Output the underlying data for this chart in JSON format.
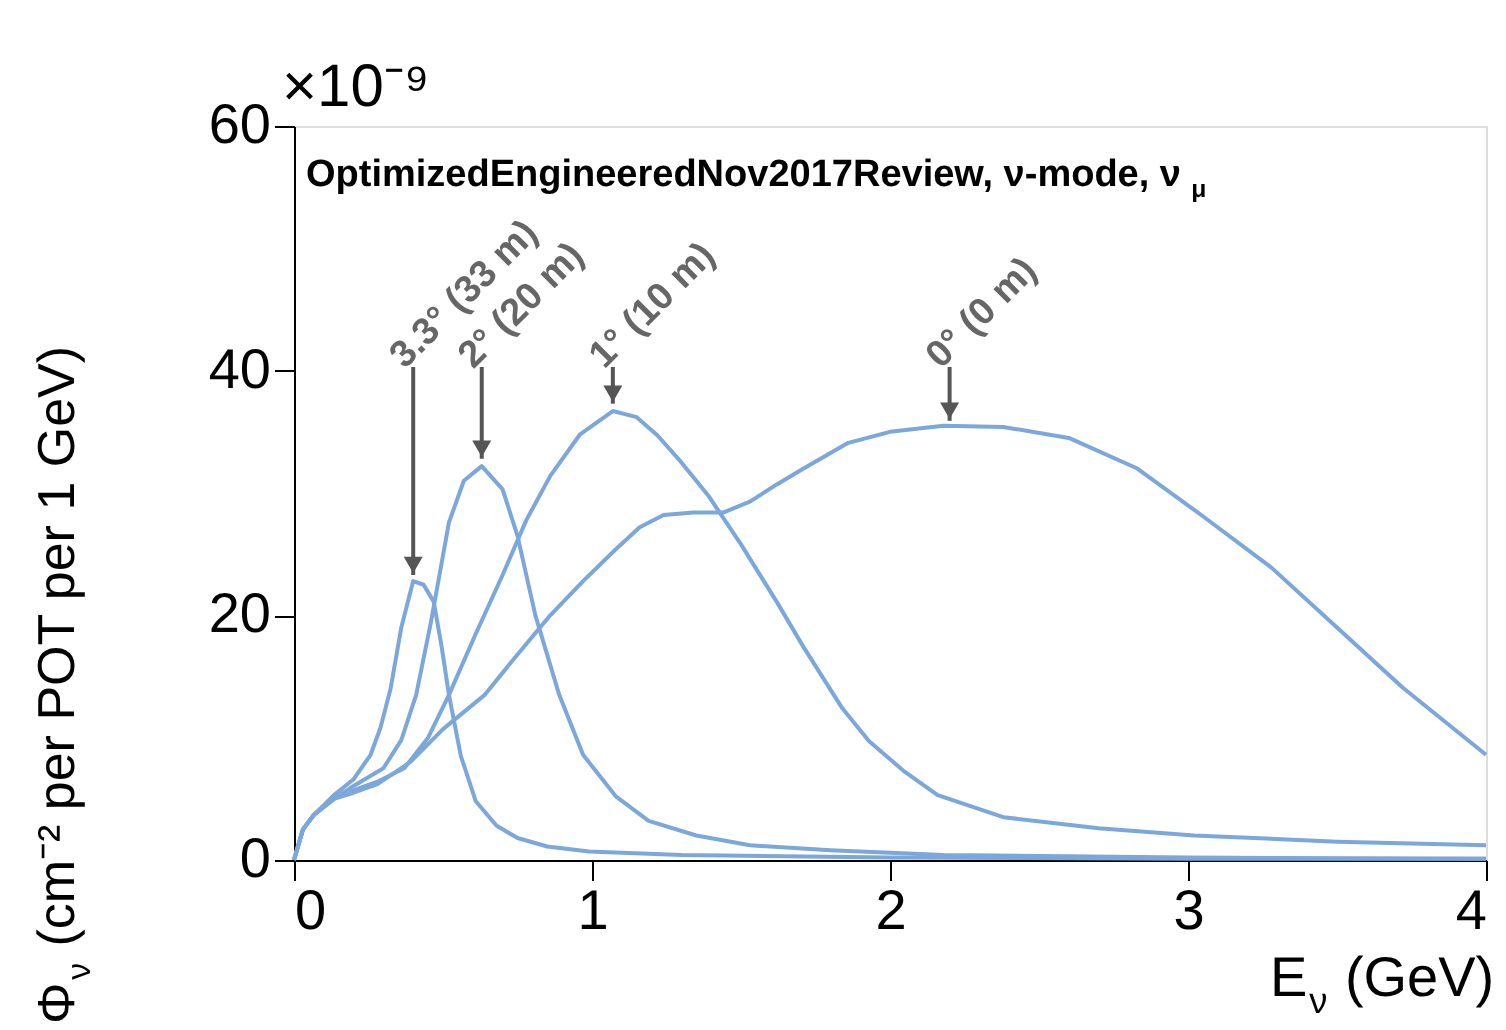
{
  "chart_data": {
    "type": "line",
    "title": "OptimizedEngineeredNov2017Review, ν-mode, ν$_{μ}$",
    "xlabel": "E$_{ν}$ (GeV)",
    "ylabel": "Φ$_{ν}$ (cm⁻² per POT per 1 GeV)",
    "xlim": [
      0,
      4
    ],
    "ylim": [
      0,
      60
    ],
    "xticks": [
      0,
      1,
      2,
      3,
      4
    ],
    "yticks": [
      0,
      20,
      40,
      60
    ],
    "grid": false,
    "marker": "none",
    "line_style": "solid",
    "series": [
      {
        "color": "#7ba7db",
        "x": [
          0,
          0.03,
          0.067,
          0.134,
          0.2,
          0.257,
          0.29,
          0.324,
          0.36,
          0.4,
          0.435,
          0.469,
          0.495,
          0.52,
          0.56,
          0.61,
          0.68,
          0.75,
          0.85,
          0.99,
          1.3,
          2.0,
          3.0,
          4.0
        ],
        "values": [
          0,
          2.5,
          3.7,
          5.3,
          6.6,
          8.6,
          10.8,
          14,
          19,
          22.8,
          22.5,
          21.1,
          17.5,
          13.5,
          8.5,
          4.8,
          2.8,
          1.8,
          1.1,
          0.7,
          0.4,
          0.2,
          0.1,
          0.1
        ]
      },
      {
        "color": "#7ba7db",
        "x": [
          0,
          0.03,
          0.067,
          0.134,
          0.19,
          0.3,
          0.36,
          0.41,
          0.46,
          0.52,
          0.57,
          0.63,
          0.7,
          0.75,
          0.81,
          0.89,
          0.97,
          1.08,
          1.19,
          1.35,
          1.53,
          1.8,
          2.18,
          3.0,
          4.0
        ],
        "values": [
          0,
          2.5,
          3.7,
          5.0,
          5.9,
          7.5,
          9.8,
          13.5,
          19.5,
          27.6,
          31,
          32.2,
          30.3,
          26.5,
          20,
          13.5,
          8.6,
          5.2,
          3.2,
          2.0,
          1.2,
          0.8,
          0.4,
          0.2,
          0.1
        ]
      },
      {
        "color": "#7ba7db",
        "x": [
          0,
          0.03,
          0.067,
          0.134,
          0.19,
          0.28,
          0.37,
          0.45,
          0.52,
          0.61,
          0.7,
          0.78,
          0.86,
          0.96,
          1.07,
          1.15,
          1.22,
          1.3,
          1.39,
          1.5,
          1.62,
          1.71,
          1.84,
          1.93,
          2.05,
          2.16,
          2.38,
          2.7,
          3.02,
          3.5,
          4.0
        ],
        "values": [
          0,
          2.5,
          3.7,
          5.0,
          5.6,
          6.4,
          7.5,
          10,
          13.5,
          18.5,
          23.3,
          27.8,
          31.4,
          34.8,
          36.7,
          36.2,
          34.7,
          32.5,
          29.8,
          25.8,
          21.1,
          17.4,
          12.4,
          9.7,
          7.2,
          5.3,
          3.5,
          2.6,
          2.0,
          1.5,
          1.2
        ]
      },
      {
        "color": "#7ba7db",
        "x": [
          0,
          0.03,
          0.067,
          0.134,
          0.2,
          0.28,
          0.39,
          0.5,
          0.64,
          0.75,
          0.86,
          0.97,
          1.08,
          1.16,
          1.24,
          1.34,
          1.44,
          1.53,
          1.62,
          1.71,
          1.86,
          2.0,
          2.18,
          2.38,
          2.6,
          2.83,
          3.05,
          3.28,
          3.5,
          3.72,
          4.0
        ],
        "values": [
          0,
          2.5,
          3.7,
          5.0,
          5.5,
          6.2,
          8.0,
          10.7,
          13.5,
          16.8,
          20,
          22.8,
          25.4,
          27.2,
          28.2,
          28.4,
          28.4,
          29.3,
          30.7,
          32,
          34.1,
          35,
          35.5,
          35.4,
          34.5,
          32,
          28.1,
          23.9,
          19,
          14.1,
          8.6
        ]
      }
    ],
    "annotations": [
      {
        "text": "3.3° (33 m)",
        "x": 0.4,
        "y": 23.3
      },
      {
        "text": "2° (20 m)",
        "x": 0.63,
        "y": 32.8
      },
      {
        "text": "1° (10 m)",
        "x": 1.07,
        "y": 37.3
      },
      {
        "text": "0° (0 m)",
        "x": 2.2,
        "y": 35.9
      },
      "×10⁻⁹"
    ]
  }
}
